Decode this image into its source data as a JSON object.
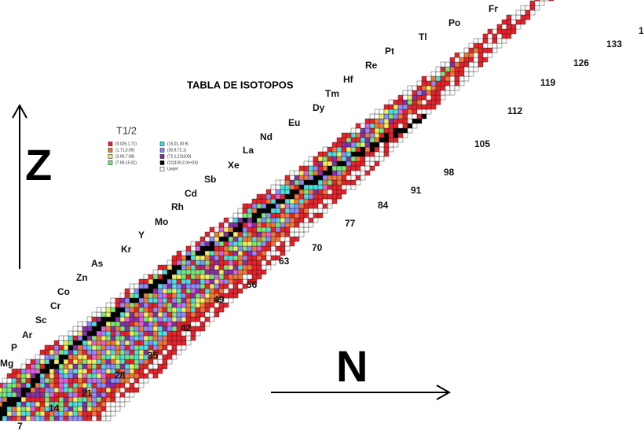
{
  "title": "TABLA DE ISOTOPOS",
  "axes": {
    "z": "Z",
    "n": "N"
  },
  "legend": {
    "title": "T1/2",
    "entries": [
      {
        "label": "(0.025,1.71)",
        "color": "#e8212a"
      },
      {
        "label": "(1.71,3.69)",
        "color": "#f07838"
      },
      {
        "label": "(3.69,7.69)",
        "color": "#f2f060"
      },
      {
        "label": "(7.69,15.01)",
        "color": "#78e878"
      },
      {
        "label": "(15.01,30.9)",
        "color": "#48e0e0"
      },
      {
        "label": "(30.9,72.1)",
        "color": "#8c8cff"
      },
      {
        "label": "(72.1,211100)",
        "color": "#8a2ea8"
      },
      {
        "label": "(211100,2.0e+24)",
        "color": "#000000"
      },
      {
        "label": "Undef",
        "color": "#ffffff"
      }
    ]
  },
  "elements": [
    "Mg",
    "P",
    "Ar",
    "Sc",
    "Cr",
    "Co",
    "Zn",
    "As",
    "Kr",
    "Y",
    "Mo",
    "Rh",
    "Cd",
    "Sb",
    "Xe",
    "La",
    "Nd",
    "Eu",
    "Dy",
    "Tm",
    "Hf",
    "Re",
    "Pt",
    "Tl",
    "Po",
    "Fr"
  ],
  "neutron_labels": [
    7,
    14,
    21,
    28,
    35,
    42,
    49,
    56,
    63,
    70,
    77,
    84,
    91,
    98,
    105,
    112,
    119,
    126,
    133,
    1
  ]
}
